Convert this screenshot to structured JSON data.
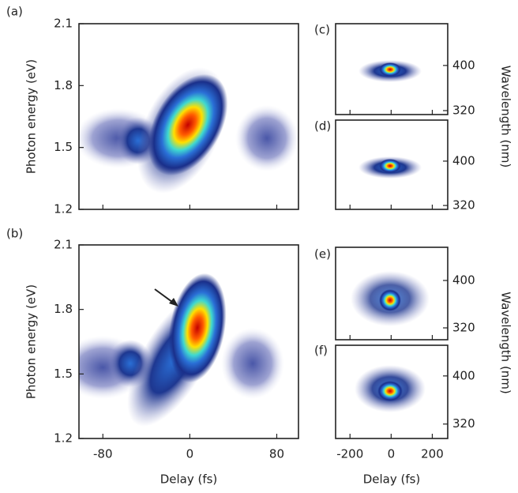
{
  "chart_data": [
    {
      "type": "contour",
      "panel_label": "(a)",
      "ylabel": "Photon energy (eV)",
      "xlim": [
        -102,
        100
      ],
      "xticks": [
        -80,
        0,
        80
      ],
      "xtick_labels": false,
      "ylim": [
        1.2,
        2.1
      ],
      "yticks": [
        1.2,
        1.5,
        1.8,
        2.1
      ]
    },
    {
      "type": "contour",
      "panel_label": "(b)",
      "ylabel": "Photon energy (eV)",
      "xlabel": "Delay (fs)",
      "xlim": [
        -102,
        100
      ],
      "xticks": [
        -80,
        0,
        80
      ],
      "xtick_labels": true,
      "ylim": [
        1.2,
        2.1
      ],
      "yticks": [
        1.2,
        1.5,
        1.8,
        2.1
      ]
    },
    {
      "type": "contour",
      "panel_label": "(c)",
      "ylabel": "Wavelength (nm)",
      "xlim": [
        -270,
        275
      ],
      "xticks": [
        -200,
        0,
        200
      ],
      "xtick_labels": false,
      "ylim": [
        313,
        474
      ],
      "yticks": [
        320,
        400
      ]
    },
    {
      "type": "contour",
      "panel_label": "(d)",
      "xlim": [
        -270,
        275
      ],
      "xticks": [
        -200,
        0,
        200
      ],
      "xtick_labels": false,
      "ylim": [
        313,
        474
      ],
      "yticks": [
        320,
        400
      ]
    },
    {
      "type": "contour",
      "panel_label": "(e)",
      "ylabel": "Wavelength (nm)",
      "xlim": [
        -270,
        275
      ],
      "xticks": [
        -200,
        0,
        200
      ],
      "xtick_labels": false,
      "ylim": [
        300,
        456
      ],
      "yticks": [
        320,
        400
      ]
    },
    {
      "type": "contour",
      "panel_label": "(f)",
      "xlabel": "Delay (fs)",
      "xlim": [
        -270,
        275
      ],
      "xticks": [
        -200,
        0,
        200
      ],
      "xtick_labels": true,
      "ylim": [
        296,
        451
      ],
      "yticks": [
        320,
        400
      ]
    }
  ]
}
